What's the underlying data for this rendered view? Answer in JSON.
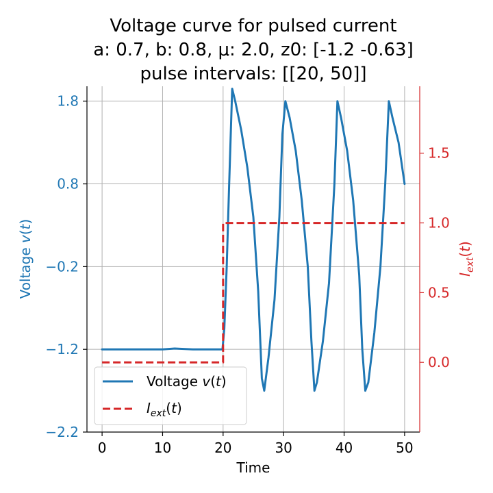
{
  "chart_data": {
    "type": "line",
    "title_lines": [
      "Voltage curve for pulsed current",
      "a: 0.7, b: 0.8, μ: 2.0, z0: [-1.2  -0.63]",
      "pulse intervals: [[20, 50]]"
    ],
    "xlabel": "Time",
    "ylabel_left": "Voltage v(t)",
    "ylabel_right": "I_ext(t)",
    "xlim": [
      -2.5,
      52.5
    ],
    "ylim_left": [
      -2.2,
      1.98
    ],
    "ylim_right": [
      -0.5,
      1.98
    ],
    "x_ticks": [
      0,
      10,
      20,
      30,
      40,
      50
    ],
    "x_tick_labels": [
      "0",
      "10",
      "20",
      "30",
      "40",
      "50"
    ],
    "y_left_ticks": [
      1.8,
      0.8,
      -0.2,
      -1.2,
      -2.2
    ],
    "y_left_tick_labels": [
      "1.8",
      "0.8",
      "−0.2",
      "−1.2",
      "−2.2"
    ],
    "y_right_ticks": [
      1.5,
      1.0,
      0.5,
      0.0
    ],
    "y_right_tick_labels": [
      "1.5",
      "1.0",
      "0.5",
      "0.0"
    ],
    "grid": true,
    "legend_position": "lower-left",
    "series": [
      {
        "name": "Voltage v(t)",
        "axis": "left",
        "style": "solid",
        "color": "#1f77b4",
        "x": [
          0,
          5,
          10,
          12,
          15,
          19.9,
          20.2,
          20.6,
          21.0,
          21.5,
          22.0,
          23.0,
          24.0,
          25.0,
          25.8,
          26.4,
          26.8,
          27.5,
          28.5,
          29.3,
          29.8,
          30.3,
          31.0,
          32.0,
          33.0,
          34.0,
          34.6,
          35.1,
          35.5,
          36.5,
          37.5,
          38.4,
          38.9,
          39.5,
          40.5,
          41.5,
          42.5,
          43.0,
          43.5,
          44.0,
          45.0,
          46.0,
          46.8,
          47.4,
          48.0,
          49.0,
          50.0
        ],
        "y": [
          -1.2,
          -1.2,
          -1.2,
          -1.19,
          -1.2,
          -1.2,
          -0.95,
          -0.2,
          0.8,
          1.95,
          1.8,
          1.45,
          1.0,
          0.4,
          -0.5,
          -1.55,
          -1.7,
          -1.3,
          -0.6,
          0.4,
          1.4,
          1.8,
          1.6,
          1.2,
          0.6,
          -0.2,
          -1.1,
          -1.7,
          -1.6,
          -1.1,
          -0.4,
          0.8,
          1.8,
          1.6,
          1.2,
          0.6,
          -0.3,
          -1.2,
          -1.7,
          -1.6,
          -1.0,
          -0.2,
          0.8,
          1.8,
          1.6,
          1.3,
          0.8
        ]
      },
      {
        "name": "I_ext(t)",
        "axis": "right",
        "style": "dashed",
        "color": "#d62728",
        "x": [
          0,
          20,
          20,
          50
        ],
        "y": [
          0,
          0,
          1,
          1
        ]
      }
    ]
  }
}
